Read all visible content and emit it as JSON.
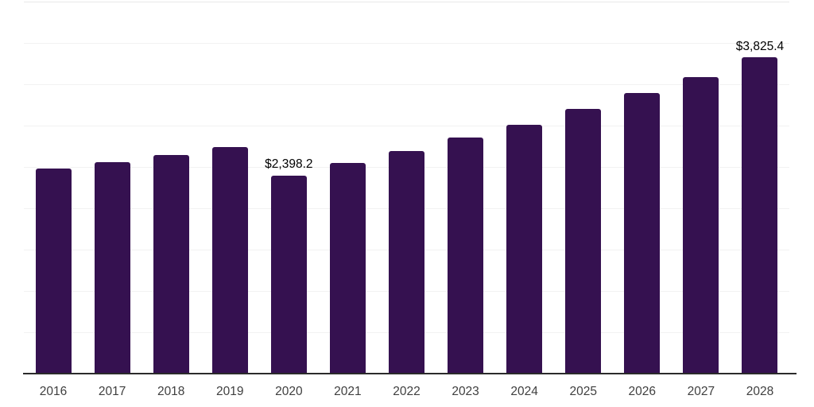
{
  "chart_data": {
    "type": "bar",
    "title": "",
    "xlabel": "",
    "ylabel": "",
    "categories": [
      "2016",
      "2017",
      "2018",
      "2019",
      "2020",
      "2021",
      "2022",
      "2023",
      "2024",
      "2025",
      "2026",
      "2027",
      "2028"
    ],
    "values": [
      2480,
      2560,
      2645,
      2740,
      2398.2,
      2548,
      2690,
      2858,
      3012,
      3198,
      3397,
      3590,
      3825.4
    ],
    "data_labels": {
      "2020": "$2,398.2",
      "2028": "$3,825.4"
    },
    "ylim": [
      0,
      4500
    ],
    "gridline_step": 500,
    "grid": true,
    "legend": false,
    "bar_color": "#351150",
    "axis_color": "#2b2b2b",
    "gridline_color": "#f2f2f2",
    "top_gridline_color": "#e8e8e8",
    "tick_label_color": "#3f3f3f",
    "data_label_color": "#000000"
  }
}
